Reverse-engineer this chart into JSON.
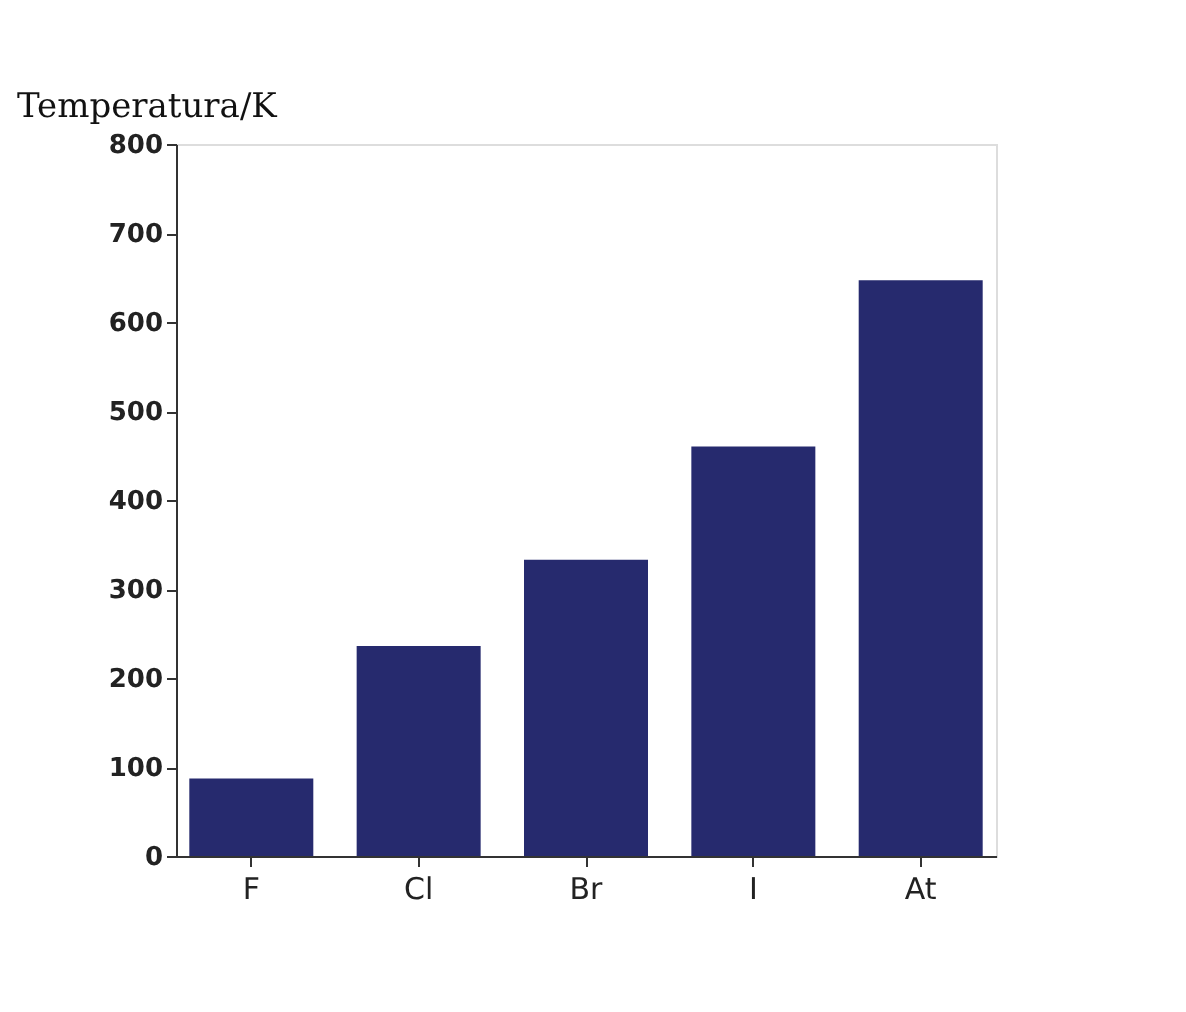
{
  "chart_data": {
    "type": "bar",
    "ylabel": "Temperatura/K",
    "categories": [
      "F",
      "Cl",
      "Br",
      "I",
      "At"
    ],
    "values": [
      87,
      236,
      333,
      460,
      647
    ],
    "color": "#262a6e",
    "ylim": [
      0,
      800
    ],
    "yticks": [
      0,
      100,
      200,
      300,
      400,
      500,
      600,
      700,
      800
    ],
    "grid": false
  }
}
